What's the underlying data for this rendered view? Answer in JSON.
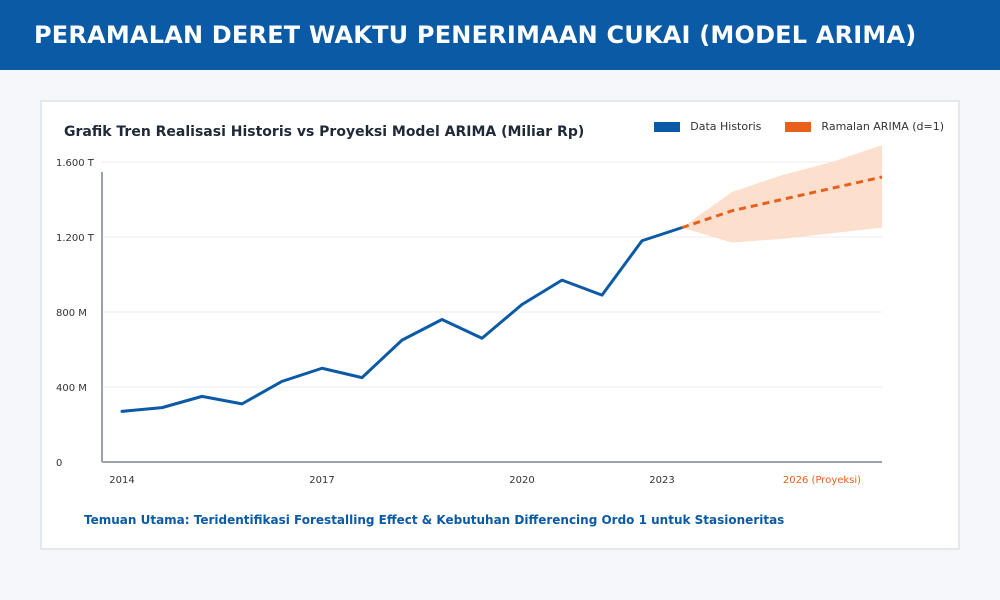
{
  "header": {
    "title": "PERAMALAN DERET WAKTU PENERIMAAN CUKAI (MODEL ARIMA)"
  },
  "finding": "Temuan Utama: Teridentifikasi Forestalling Effect & Kebutuhan Differencing Ordo 1 untuk Stasioneritas",
  "colors": {
    "header_bg": "#0b5aa6",
    "historical": "#0b5aa6",
    "forecast": "#e8601c",
    "band": "#fbd9c4",
    "grid": "#eeeeee",
    "axis": "#9aa3ad"
  },
  "chart_data": {
    "type": "line",
    "title": "Grafik Tren Realisasi Historis vs Proyeksi Model ARIMA (Miliar Rp)",
    "y_ticks": [
      {
        "value": 0,
        "label": "0"
      },
      {
        "value": 400,
        "label": "400 M"
      },
      {
        "value": 800,
        "label": "800 M"
      },
      {
        "value": 1200,
        "label": "1.200 T"
      },
      {
        "value": 1600,
        "label": "1.600 T"
      }
    ],
    "ylim": [
      0,
      1600
    ],
    "x_tick_labels": [
      {
        "x": 1,
        "label": "2014"
      },
      {
        "x": 3,
        "label": "2017"
      },
      {
        "x": 5,
        "label": "2020"
      },
      {
        "x": 6.4,
        "label": "2023"
      },
      {
        "x": 8,
        "label": "2026 (Proyeksi)"
      }
    ],
    "xlim": [
      0.8,
      8.6
    ],
    "grid": true,
    "legend_position": "top-right",
    "series": [
      {
        "name": "Data Historis",
        "style": "solid",
        "x": [
          1,
          1.4,
          1.8,
          2.2,
          2.6,
          3,
          3.4,
          3.8,
          4.2,
          4.6,
          5,
          5.4,
          5.8,
          6.2,
          6.6
        ],
        "values": [
          270,
          290,
          350,
          310,
          430,
          500,
          450,
          650,
          760,
          660,
          840,
          970,
          890,
          1180,
          1250
        ]
      },
      {
        "name": "Ramalan ARIMA (d=1)",
        "style": "dashed",
        "x": [
          6.6,
          7.1,
          7.6,
          8.1,
          8.6
        ],
        "values": [
          1250,
          1340,
          1400,
          1460,
          1520
        ],
        "lower": [
          1250,
          1170,
          1190,
          1220,
          1250
        ],
        "upper": [
          1250,
          1440,
          1530,
          1600,
          1690
        ]
      }
    ]
  }
}
